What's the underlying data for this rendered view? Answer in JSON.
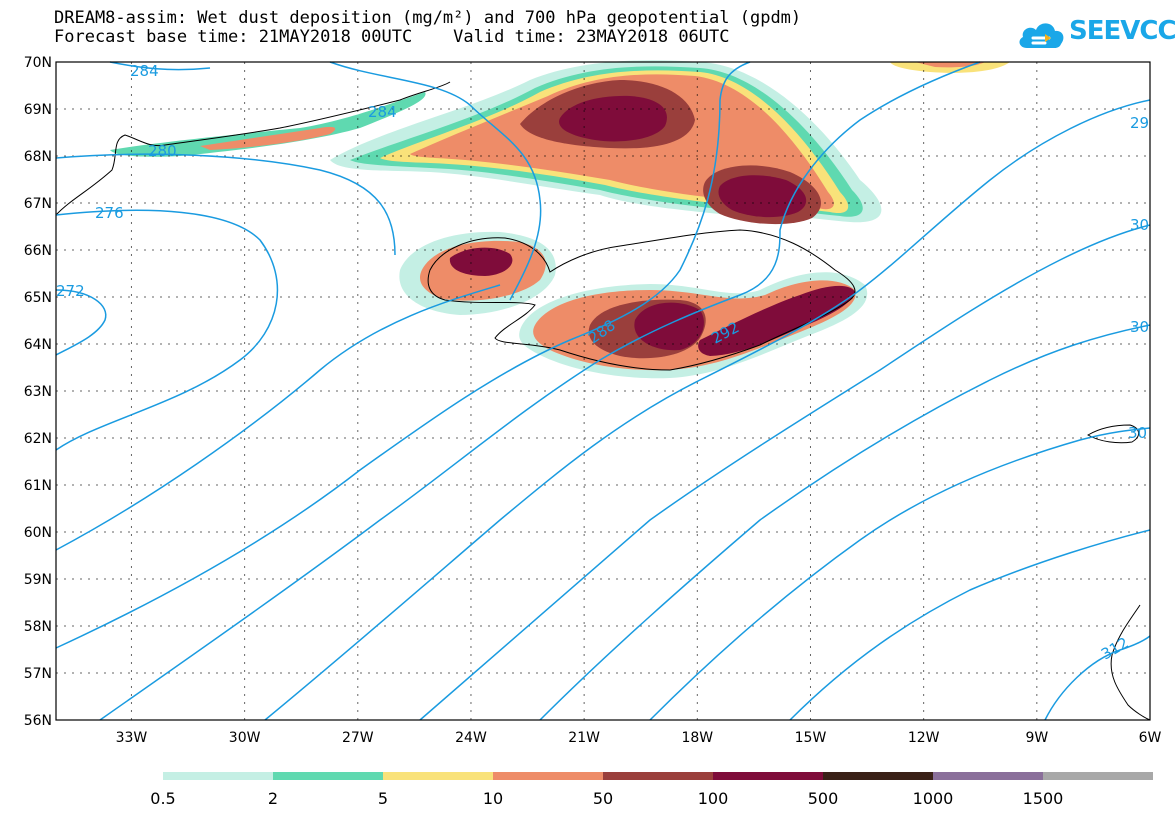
{
  "title": {
    "line1": "DREAM8-assim: Wet dust deposition (mg/m²) and 700 hPa geopotential (gpdm)",
    "line2": "Forecast base time: 21MAY2018 00UTC    Valid time: 23MAY2018 06UTC"
  },
  "logo": {
    "text": "SEEVCCC",
    "icon": "cloud-icon",
    "color": "#1aa7e8"
  },
  "axes": {
    "lat_labels": [
      "70N",
      "69N",
      "68N",
      "67N",
      "66N",
      "65N",
      "64N",
      "63N",
      "62N",
      "61N",
      "60N",
      "59N",
      "58N",
      "57N",
      "56N"
    ],
    "lon_labels": [
      "33W",
      "30W",
      "27W",
      "24W",
      "21W",
      "18W",
      "15W",
      "12W",
      "9W",
      "6W"
    ],
    "lat_range": [
      56,
      70
    ],
    "lon_range": [
      -35,
      -6
    ]
  },
  "contours": {
    "color": "#1a9be0",
    "labels": [
      "284",
      "284",
      "280",
      "276",
      "272",
      "288",
      "292",
      "29",
      "30",
      "30",
      "30",
      "312"
    ]
  },
  "legend": {
    "labels": [
      "0.5",
      "2",
      "5",
      "10",
      "50",
      "100",
      "500",
      "1000",
      "1500"
    ],
    "colors": [
      "#c4efe4",
      "#5fd9b0",
      "#f9e27a",
      "#ee8c68",
      "#9a3f3c",
      "#7f0c3a",
      "#3a2117",
      "#8a6f9a",
      "#a8a8a8"
    ]
  }
}
